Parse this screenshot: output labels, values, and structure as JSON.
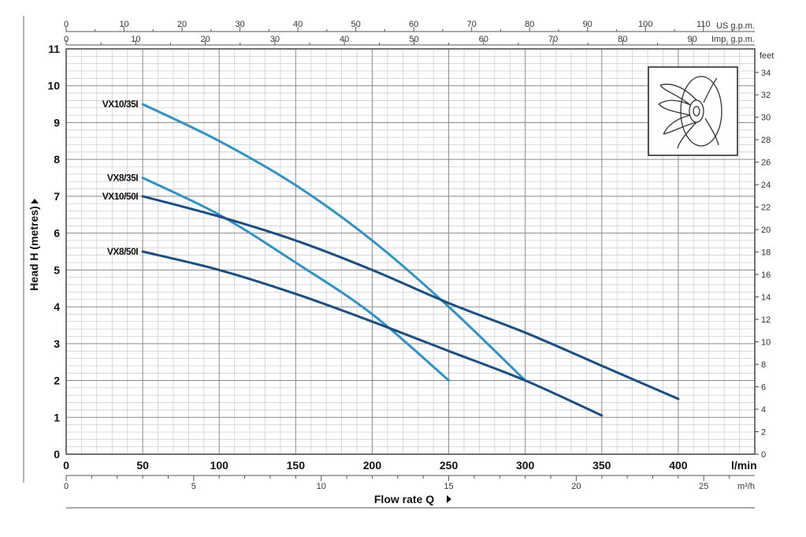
{
  "chart_data": {
    "type": "line",
    "xlabel": "Flow rate Q",
    "ylabel": "Head H (metres)",
    "x_unit": "l/min",
    "xlim": [
      0,
      450
    ],
    "ylim": [
      0,
      11
    ],
    "x_ticks": [
      0,
      50,
      100,
      150,
      200,
      250,
      300,
      350,
      400
    ],
    "y_ticks": [
      0,
      1,
      2,
      3,
      4,
      5,
      6,
      7,
      8,
      9,
      10,
      11
    ],
    "grid": true,
    "secondary_axes": {
      "us_gpm": {
        "unit": "US g.p.m.",
        "ticks": [
          0,
          10,
          20,
          30,
          40,
          50,
          60,
          70,
          80,
          90,
          100,
          110
        ]
      },
      "imp_gpm": {
        "unit": "Imp. g.p.m.",
        "ticks": [
          0,
          10,
          20,
          30,
          40,
          50,
          60,
          70,
          80,
          90
        ]
      },
      "m3h": {
        "unit": "m³/h",
        "ticks": [
          0,
          5,
          10,
          15,
          20,
          25
        ]
      },
      "feet": {
        "unit": "feet",
        "ticks": [
          0,
          2,
          4,
          6,
          8,
          10,
          12,
          14,
          16,
          18,
          20,
          22,
          24,
          26,
          28,
          30,
          32,
          34
        ]
      }
    },
    "series": [
      {
        "name": "VX10/35I",
        "color": "#2e93c9",
        "x": [
          50,
          100,
          150,
          200,
          250,
          300
        ],
        "y": [
          9.5,
          8.5,
          7.3,
          5.8,
          4.0,
          2.0
        ]
      },
      {
        "name": "VX8/35I",
        "color": "#2e93c9",
        "x": [
          50,
          100,
          150,
          200,
          250
        ],
        "y": [
          7.5,
          6.5,
          5.2,
          3.8,
          2.0
        ]
      },
      {
        "name": "VX10/50I",
        "color": "#1a4f86",
        "x": [
          50,
          100,
          150,
          200,
          250,
          300,
          350,
          400
        ],
        "y": [
          7.0,
          6.45,
          5.8,
          5.0,
          4.1,
          3.3,
          2.4,
          1.5
        ]
      },
      {
        "name": "VX8/50I",
        "color": "#1a4f86",
        "x": [
          50,
          100,
          150,
          200,
          250,
          300,
          350
        ],
        "y": [
          5.5,
          5.0,
          4.35,
          3.6,
          2.8,
          2.0,
          1.05
        ]
      }
    ]
  },
  "icons": {
    "impeller": "impeller-icon",
    "arrow": "triangle-right-icon"
  }
}
